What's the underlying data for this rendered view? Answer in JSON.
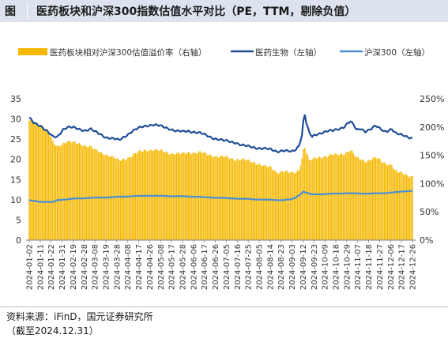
{
  "header": {
    "figure_label": "图",
    "title": "医药板块和沪深300指数估值水平对比（PE，TTM，剔除负值）"
  },
  "footer": {
    "source": "资料来源：iFinD，国元证券研究所",
    "note": "（截至2024.12.31）"
  },
  "chart_data": {
    "type": "bar+line",
    "legend": [
      {
        "name": "医药板块相对沪深300估值溢价率（右轴）",
        "kind": "bar",
        "color": "#f5b800"
      },
      {
        "name": "医药生物（左轴）",
        "kind": "line",
        "color": "#1f4e96"
      },
      {
        "name": "沪深300（左轴）",
        "kind": "line",
        "color": "#4a8fd4"
      }
    ],
    "left_axis": {
      "min": 0,
      "max": 35,
      "ticks": [
        "0",
        "5",
        "10",
        "15",
        "20",
        "25",
        "30",
        "35"
      ]
    },
    "right_axis": {
      "min": 0,
      "max": 250,
      "ticks": [
        "0%",
        "50%",
        "100%",
        "150%",
        "200%",
        "250%"
      ]
    },
    "x_ticks": [
      "2024-01-02",
      "2024-01-11",
      "2024-01-22",
      "2024-01-31",
      "2024-02-19",
      "2024-02-28",
      "2024-03-08",
      "2024-03-19",
      "2024-03-28",
      "2024-04-08",
      "2024-04-17",
      "2024-04-26",
      "2024-05-08",
      "2024-05-17",
      "2024-05-28",
      "2024-06-06",
      "2024-06-17",
      "2024-06-26",
      "2024-07-05",
      "2024-07-16",
      "2024-07-25",
      "2024-08-05",
      "2024-08-14",
      "2024-08-23",
      "2024-09-03",
      "2024-09-12",
      "2024-09-23",
      "2024-10-09",
      "2024-10-18",
      "2024-10-29",
      "2024-11-07",
      "2024-11-18",
      "2024-11-27",
      "2024-12-06",
      "2024-12-17",
      "2024-12-26"
    ],
    "pharma_anchors": [
      [
        0,
        30.2
      ],
      [
        3,
        29.0
      ],
      [
        8,
        28.3
      ],
      [
        12,
        27.0
      ],
      [
        16,
        25.5
      ],
      [
        19,
        25.5
      ],
      [
        23,
        27.5
      ],
      [
        26,
        28.0
      ],
      [
        30,
        27.8
      ],
      [
        34,
        27.4
      ],
      [
        38,
        27.2
      ],
      [
        42,
        27.5
      ],
      [
        44,
        26.9
      ],
      [
        48,
        26.2
      ],
      [
        52,
        25.5
      ],
      [
        56,
        25.2
      ],
      [
        61,
        24.7
      ],
      [
        66,
        26.0
      ],
      [
        70,
        27.0
      ],
      [
        75,
        27.8
      ],
      [
        80,
        28.4
      ],
      [
        84,
        28.6
      ],
      [
        88,
        28.3
      ],
      [
        92,
        27.9
      ],
      [
        96,
        27.5
      ],
      [
        100,
        27.0
      ],
      [
        104,
        26.8
      ],
      [
        108,
        27.0
      ],
      [
        112,
        26.8
      ],
      [
        116,
        26.5
      ],
      [
        120,
        25.9
      ],
      [
        124,
        25.4
      ],
      [
        128,
        25.0
      ],
      [
        132,
        24.6
      ],
      [
        136,
        24.4
      ],
      [
        140,
        24.2
      ],
      [
        144,
        23.5
      ],
      [
        148,
        23.2
      ],
      [
        152,
        23.0
      ],
      [
        156,
        22.8
      ],
      [
        160,
        22.6
      ],
      [
        164,
        22.4
      ],
      [
        168,
        22.0
      ],
      [
        172,
        22.2
      ],
      [
        175,
        22.0
      ],
      [
        178,
        21.8
      ],
      [
        181,
        22.5
      ],
      [
        183,
        23.5
      ],
      [
        185,
        26.0
      ],
      [
        186,
        29.5
      ],
      [
        187,
        31.2
      ],
      [
        188,
        29.0
      ],
      [
        190,
        26.5
      ],
      [
        192,
        25.5
      ],
      [
        194,
        26.0
      ],
      [
        198,
        26.6
      ],
      [
        202,
        27.0
      ],
      [
        206,
        27.0
      ],
      [
        210,
        27.5
      ],
      [
        214,
        28.2
      ],
      [
        216,
        29.0
      ],
      [
        218,
        29.3
      ],
      [
        220,
        28.5
      ],
      [
        222,
        27.2
      ],
      [
        225,
        27.6
      ],
      [
        228,
        27.0
      ],
      [
        232,
        27.5
      ],
      [
        235,
        28.2
      ],
      [
        238,
        27.6
      ],
      [
        241,
        27.0
      ],
      [
        244,
        27.2
      ],
      [
        246,
        27.5
      ],
      [
        248,
        26.5
      ],
      [
        250,
        26.2
      ],
      [
        254,
        26.0
      ],
      [
        257,
        25.6
      ],
      [
        260,
        25.2
      ]
    ],
    "hs300_anchors": [
      [
        0,
        9.8
      ],
      [
        8,
        9.5
      ],
      [
        16,
        9.4
      ],
      [
        19,
        9.9
      ],
      [
        25,
        10.1
      ],
      [
        32,
        10.3
      ],
      [
        45,
        10.5
      ],
      [
        55,
        10.6
      ],
      [
        65,
        10.8
      ],
      [
        80,
        11.0
      ],
      [
        95,
        10.9
      ],
      [
        110,
        10.8
      ],
      [
        120,
        10.6
      ],
      [
        140,
        10.3
      ],
      [
        160,
        10.0
      ],
      [
        172,
        9.9
      ],
      [
        178,
        10.1
      ],
      [
        181,
        10.6
      ],
      [
        183,
        11.1
      ],
      [
        186,
        12.0
      ],
      [
        189,
        11.6
      ],
      [
        192,
        11.3
      ],
      [
        200,
        11.4
      ],
      [
        215,
        11.6
      ],
      [
        230,
        11.5
      ],
      [
        240,
        11.6
      ],
      [
        250,
        11.9
      ],
      [
        255,
        12.1
      ],
      [
        260,
        12.2
      ]
    ],
    "premium_anchors": [
      [
        0,
        210
      ],
      [
        3,
        208
      ],
      [
        8,
        202
      ],
      [
        12,
        195
      ],
      [
        15,
        180
      ],
      [
        16,
        172
      ],
      [
        19,
        165
      ],
      [
        23,
        172
      ],
      [
        26,
        175
      ],
      [
        30,
        172
      ],
      [
        34,
        170
      ],
      [
        38,
        168
      ],
      [
        42,
        165
      ],
      [
        44,
        160
      ],
      [
        48,
        155
      ],
      [
        52,
        152
      ],
      [
        56,
        148
      ],
      [
        61,
        140
      ],
      [
        66,
        145
      ],
      [
        70,
        150
      ],
      [
        75,
        156
      ],
      [
        80,
        160
      ],
      [
        84,
        160
      ],
      [
        88,
        158
      ],
      [
        92,
        156
      ],
      [
        96,
        154
      ],
      [
        100,
        153
      ],
      [
        104,
        152
      ],
      [
        108,
        155
      ],
      [
        112,
        155
      ],
      [
        116,
        155
      ],
      [
        120,
        152
      ],
      [
        124,
        150
      ],
      [
        128,
        148
      ],
      [
        132,
        147
      ],
      [
        136,
        145
      ],
      [
        140,
        143
      ],
      [
        144,
        143
      ],
      [
        148,
        140
      ],
      [
        152,
        138
      ],
      [
        156,
        135
      ],
      [
        160,
        130
      ],
      [
        164,
        128
      ],
      [
        168,
        120
      ],
      [
        172,
        122
      ],
      [
        175,
        120
      ],
      [
        178,
        118
      ],
      [
        181,
        120
      ],
      [
        183,
        125
      ],
      [
        185,
        145
      ],
      [
        186,
        160
      ],
      [
        187,
        165
      ],
      [
        188,
        155
      ],
      [
        190,
        140
      ],
      [
        192,
        142
      ],
      [
        194,
        145
      ],
      [
        198,
        148
      ],
      [
        202,
        148
      ],
      [
        206,
        150
      ],
      [
        210,
        152
      ],
      [
        214,
        154
      ],
      [
        216,
        156
      ],
      [
        218,
        158
      ],
      [
        220,
        152
      ],
      [
        222,
        145
      ],
      [
        225,
        144
      ],
      [
        228,
        140
      ],
      [
        232,
        142
      ],
      [
        235,
        145
      ],
      [
        238,
        142
      ],
      [
        241,
        137
      ],
      [
        244,
        134
      ],
      [
        246,
        133
      ],
      [
        248,
        122
      ],
      [
        250,
        120
      ],
      [
        254,
        118
      ],
      [
        257,
        115
      ],
      [
        260,
        112
      ]
    ],
    "points": 261
  }
}
